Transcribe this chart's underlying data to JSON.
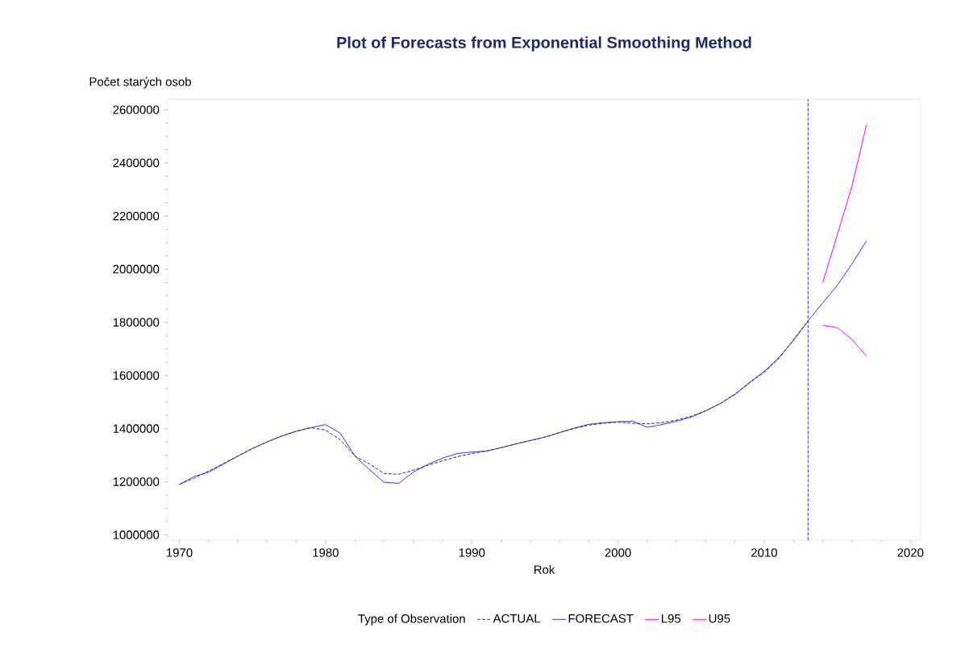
{
  "chart_data": {
    "type": "line",
    "title": "Plot of Forecasts from Exponential Smoothing Method",
    "xlabel": "Rok",
    "ylabel": "Počet starých osob",
    "legend_title": "Type of Observation",
    "legend": "bottom",
    "grid": false,
    "xlim": [
      1969.2,
      2020.7
    ],
    "xticks": [
      1970,
      1980,
      1990,
      2000,
      2010,
      2020
    ],
    "ylim": [
      980000,
      2640000
    ],
    "yticks": [
      1000000,
      1200000,
      1400000,
      1600000,
      1800000,
      2000000,
      2200000,
      2400000,
      2600000
    ],
    "ref_lines": [
      {
        "axis": "x",
        "value": 2013,
        "color": "#3333ff",
        "line_style": "dashed"
      }
    ],
    "series": [
      {
        "name": "ACTUAL",
        "color": "#333333",
        "line_style": "dashed",
        "x": [
          1970,
          1971,
          1972,
          1973,
          1974,
          1975,
          1976,
          1977,
          1978,
          1979,
          1980,
          1981,
          1982,
          1983,
          1984,
          1985,
          1986,
          1987,
          1988,
          1989,
          1990,
          1991,
          1992,
          1993,
          1994,
          1995,
          1996,
          1997,
          1998,
          1999,
          2000,
          2001,
          2002,
          2003,
          2004,
          2005,
          2006,
          2007,
          2008,
          2009,
          2010,
          2011,
          2012,
          2013
        ],
        "values": [
          1190000,
          1213000,
          1240000,
          1268000,
          1297000,
          1325000,
          1350000,
          1372000,
          1390000,
          1403000,
          1394000,
          1358000,
          1297000,
          1267000,
          1231000,
          1228000,
          1243000,
          1262000,
          1279000,
          1294000,
          1306000,
          1316000,
          1328000,
          1342000,
          1355000,
          1368000,
          1385000,
          1400000,
          1413000,
          1420000,
          1424000,
          1420000,
          1418000,
          1422000,
          1432000,
          1446000,
          1467000,
          1495000,
          1528000,
          1572000,
          1612000,
          1663000,
          1735000,
          1805000
        ]
      },
      {
        "name": "FORECAST",
        "color": "#3333ff",
        "line_style": "solid",
        "x": [
          1970,
          1971,
          1972,
          1973,
          1974,
          1975,
          1976,
          1977,
          1978,
          1979,
          1980,
          1981,
          1982,
          1983,
          1984,
          1985,
          1986,
          1987,
          1988,
          1989,
          1990,
          1991,
          1992,
          1993,
          1994,
          1995,
          1996,
          1997,
          1998,
          1999,
          2000,
          2001,
          2002,
          2003,
          2004,
          2005,
          2006,
          2007,
          2008,
          2009,
          2010,
          2011,
          2012,
          2013,
          2014,
          2015,
          2016,
          2017
        ],
        "values": [
          1190000,
          1219000,
          1236000,
          1266000,
          1296000,
          1325000,
          1350000,
          1372000,
          1390000,
          1404000,
          1415000,
          1383000,
          1297000,
          1245000,
          1198000,
          1194000,
          1236000,
          1265000,
          1289000,
          1306000,
          1312000,
          1315000,
          1328000,
          1342000,
          1355000,
          1368000,
          1385000,
          1402000,
          1416000,
          1422000,
          1426000,
          1428000,
          1405000,
          1415000,
          1428000,
          1443000,
          1467000,
          1494000,
          1530000,
          1574000,
          1615000,
          1667000,
          1731000,
          1805000,
          1873000,
          1939000,
          2020000,
          2107000
        ]
      },
      {
        "name": "L95",
        "color": "#ff00ff",
        "line_style": "solid",
        "x": [
          2014,
          2015,
          2016,
          2017
        ],
        "values": [
          1789000,
          1780000,
          1736000,
          1673000
        ]
      },
      {
        "name": "U95",
        "color": "#ff00ff",
        "line_style": "solid",
        "x": [
          2014,
          2015,
          2016,
          2017
        ],
        "values": [
          1949000,
          2130000,
          2312000,
          2544000
        ]
      }
    ]
  }
}
